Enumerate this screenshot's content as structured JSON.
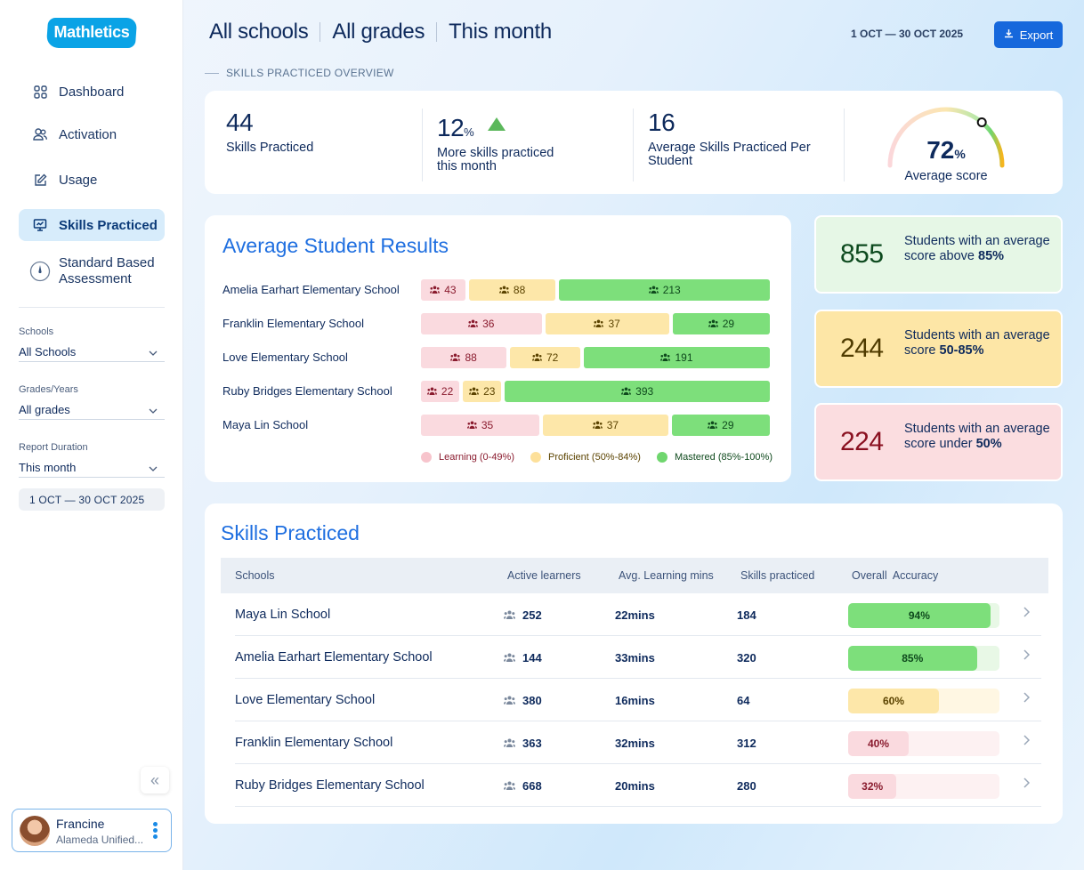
{
  "brand": {
    "logo_text": "Mathletics"
  },
  "sidebar": {
    "nav": [
      {
        "label": "Dashboard",
        "icon": "grid-icon"
      },
      {
        "label": "Activation",
        "icon": "users-icon"
      },
      {
        "label": "Usage",
        "icon": "edit-icon"
      },
      {
        "label": "Skills Practiced",
        "icon": "presentation-icon",
        "active": true
      },
      {
        "label": "Standard Based Assessment",
        "icon": "gauge-icon"
      }
    ],
    "filters": {
      "schools": {
        "label": "Schools",
        "value": "All Schools"
      },
      "grades": {
        "label": "Grades/Years",
        "value": "All grades"
      },
      "duration": {
        "label": "Report Duration",
        "value": "This month"
      }
    },
    "date_range": "1 OCT —  30 OCT 2025",
    "collapse_glyph": "«",
    "user": {
      "name": "Francine",
      "org": "Alameda Unified..."
    }
  },
  "header": {
    "crumbs": [
      "All schools",
      "All grades",
      "This month"
    ],
    "date_range": "1 OCT —  30 OCT 2025",
    "export_label": "Export",
    "section_label": "SKILLS PRACTICED OVERVIEW"
  },
  "overview": {
    "skills_practiced": {
      "value": "44",
      "label": "Skills Practiced"
    },
    "more_skills": {
      "value": "12",
      "unit": "%",
      "label_line1": "More skills practiced",
      "label_line2": "this month",
      "trend": "up"
    },
    "avg_per_student": {
      "value": "16",
      "label_line1": "Average Skills Practiced Per",
      "label_line2": "Student"
    },
    "average_score": {
      "value": "72",
      "unit": "%",
      "label": "Average score",
      "fraction": 0.72
    }
  },
  "results": {
    "title": "Average Student Results",
    "rows": [
      {
        "school": "Amelia Earhart Elementary School",
        "learning": 43,
        "proficient": 88,
        "mastered": 213
      },
      {
        "school": "Franklin Elementary School",
        "learning": 36,
        "proficient": 37,
        "mastered": 29
      },
      {
        "school": "Love Elementary School",
        "learning": 88,
        "proficient": 72,
        "mastered": 191
      },
      {
        "school": "Ruby Bridges Elementary School",
        "learning": 22,
        "proficient": 23,
        "mastered": 393
      },
      {
        "school": "Maya Lin School",
        "learning": 35,
        "proficient": 37,
        "mastered": 29
      }
    ],
    "legend": {
      "learning": "Learning (0-49%)",
      "proficient": "Proficient (50%-84%)",
      "mastered": "Mastered (85%-100%)"
    },
    "colors": {
      "learning": "#fadadf",
      "proficient": "#fde7a9",
      "mastered": "#7ddf7b"
    }
  },
  "summary": [
    {
      "value": "855",
      "text_pre": "Students with an average score above ",
      "text_bold": "85%",
      "tone": "green"
    },
    {
      "value": "244",
      "text_pre": "Students with an average score ",
      "text_bold": "50-85%",
      "tone": "yellow"
    },
    {
      "value": "224",
      "text_pre": "Students with an average score under ",
      "text_bold": "50%",
      "tone": "red"
    }
  ],
  "skills_table": {
    "title": "Skills Practiced",
    "headers": [
      "Schools",
      "Active learners",
      "Avg. Learning mins",
      "Skills practiced",
      "Overall  Accuracy"
    ],
    "rows": [
      {
        "school": "Maya Lin School",
        "learners": "252",
        "mins": "22mins",
        "skills": "184",
        "accuracy": "94%",
        "accuracy_value": 94
      },
      {
        "school": "Amelia Earhart Elementary School",
        "learners": "144",
        "mins": "33mins",
        "skills": "320",
        "accuracy": "85%",
        "accuracy_value": 85
      },
      {
        "school": "Love Elementary School",
        "learners": "380",
        "mins": "16mins",
        "skills": "64",
        "accuracy": "60%",
        "accuracy_value": 60
      },
      {
        "school": "Franklin Elementary School",
        "learners": "363",
        "mins": "32mins",
        "skills": "312",
        "accuracy": "40%",
        "accuracy_value": 40
      },
      {
        "school": "Ruby Bridges Elementary School",
        "learners": "668",
        "mins": "20mins",
        "skills": "280",
        "accuracy": "32%",
        "accuracy_value": 32
      }
    ]
  }
}
